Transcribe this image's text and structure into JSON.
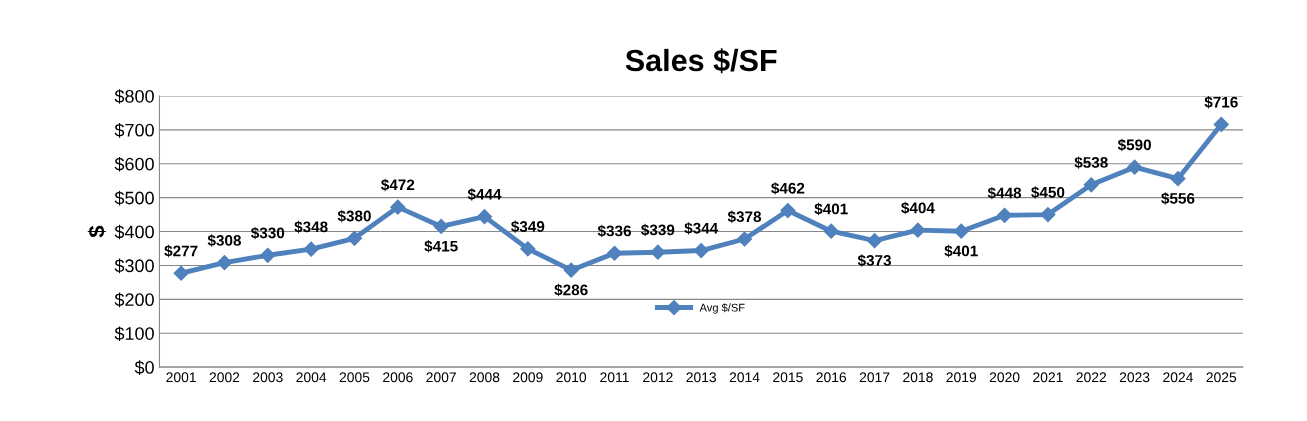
{
  "chart_data": {
    "type": "line",
    "title": "Sales $/SF",
    "ylabel": "$",
    "categories": [
      "2001",
      "2002",
      "2003",
      "2004",
      "2005",
      "2006",
      "2007",
      "2008",
      "2009",
      "2010",
      "2011",
      "2012",
      "2013",
      "2014",
      "2015",
      "2016",
      "2017",
      "2018",
      "2019",
      "2020",
      "2021",
      "2022",
      "2023",
      "2024",
      "2025"
    ],
    "series": [
      {
        "name": "Avg $/SF",
        "color": "#4f81bd",
        "values": [
          277,
          308,
          330,
          348,
          380,
          472,
          415,
          444,
          349,
          286,
          336,
          339,
          344,
          378,
          462,
          401,
          373,
          404,
          401,
          448,
          450,
          538,
          590,
          556,
          716
        ],
        "value_labels": [
          "$277",
          "$308",
          "$330",
          "$348",
          "$380",
          "$472",
          "$415",
          "$444",
          "$349",
          "$286",
          "$336",
          "$339",
          "$344",
          "$378",
          "$462",
          "$401",
          "$373",
          "$404",
          "$401",
          "$448",
          "$450",
          "$538",
          "$590",
          "$556",
          "$716"
        ]
      }
    ],
    "ylim": [
      0,
      800
    ],
    "yticks": [
      {
        "value": 0,
        "label": "$0"
      },
      {
        "value": 100,
        "label": "$100"
      },
      {
        "value": 200,
        "label": "$200"
      },
      {
        "value": 300,
        "label": "$300"
      },
      {
        "value": 400,
        "label": "$400"
      },
      {
        "value": 500,
        "label": "$500"
      },
      {
        "value": 600,
        "label": "$600"
      },
      {
        "value": 700,
        "label": "$700"
      },
      {
        "value": 800,
        "label": "$800"
      }
    ],
    "grid": "y",
    "legend": "bottom",
    "marker": "diamond",
    "line_style": "solid"
  }
}
